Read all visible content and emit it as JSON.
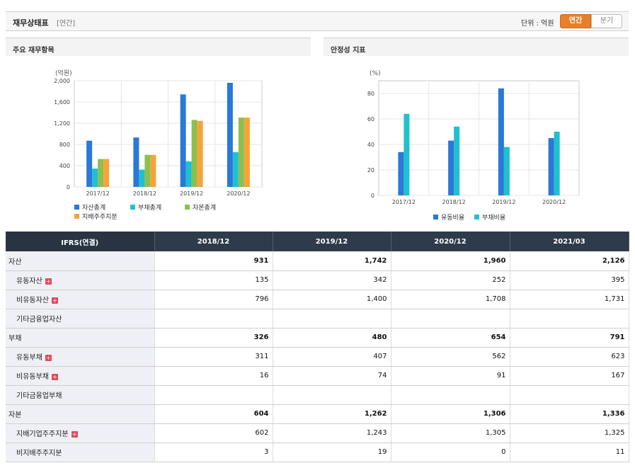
{
  "header": {
    "title": "재무상태표",
    "subtitle": "[연간]",
    "unit_label": "단위 : 억원",
    "annual_button": "연간",
    "quarter_button": "분기"
  },
  "panels": {
    "left_title": "주요 재무항목",
    "right_title": "안정성 지표"
  },
  "colors": {
    "blue": "#2a78d8",
    "cyan": "#1fc0cf",
    "green": "#8cbf4f",
    "orange": "#f6a43a"
  },
  "chart_data": [
    {
      "type": "bar",
      "ylabel": "(억원)",
      "ylim": [
        0,
        2000
      ],
      "y_ticks": [
        "0",
        "400",
        "800",
        "1,200",
        "1,600",
        "2,000"
      ],
      "y_tick_values": [
        0,
        400,
        800,
        1200,
        1600,
        2000
      ],
      "categories": [
        "2017/12",
        "2018/12",
        "2019/12",
        "2020/12"
      ],
      "series": [
        {
          "name": "자산총계",
          "color": "#2a78d8",
          "values": [
            870,
            931,
            1742,
            1960
          ]
        },
        {
          "name": "부채총계",
          "color": "#1fc0cf",
          "values": [
            345,
            326,
            480,
            654
          ]
        },
        {
          "name": "자본총계",
          "color": "#8cbf4f",
          "values": [
            525,
            604,
            1262,
            1306
          ]
        },
        {
          "name": "지배주주지분",
          "color": "#f6a43a",
          "values": [
            525,
            602,
            1243,
            1305
          ]
        }
      ],
      "grid": true,
      "legend": "bottom"
    },
    {
      "type": "bar",
      "ylabel": "(%)",
      "ylim": [
        0,
        90
      ],
      "y_ticks": [
        "0",
        "20",
        "40",
        "60",
        "80"
      ],
      "y_tick_values": [
        0,
        20,
        40,
        60,
        80
      ],
      "categories": [
        "2017/12",
        "2018/12",
        "2019/12",
        "2020/12"
      ],
      "series": [
        {
          "name": "유동비율",
          "color": "#2a78d8",
          "values": [
            34,
            43,
            84,
            45
          ]
        },
        {
          "name": "부채비율",
          "color": "#1fc0cf",
          "values": [
            64,
            54,
            38,
            50
          ]
        }
      ],
      "grid": true,
      "legend": "bottom"
    }
  ],
  "table": {
    "header": [
      "IFRS(연결)",
      "2018/12",
      "2019/12",
      "2020/12",
      "2021/03"
    ],
    "rows": [
      {
        "label": "자산",
        "level": "main",
        "expand": false,
        "values": [
          "931",
          "1,742",
          "1,960",
          "2,126"
        ]
      },
      {
        "label": "유동자산",
        "level": "sub",
        "expand": true,
        "values": [
          "135",
          "342",
          "252",
          "395"
        ]
      },
      {
        "label": "비유동자산",
        "level": "sub",
        "expand": true,
        "values": [
          "796",
          "1,400",
          "1,708",
          "1,731"
        ]
      },
      {
        "label": "기타금융업자산",
        "level": "sub",
        "expand": false,
        "values": [
          "",
          "",
          "",
          ""
        ]
      },
      {
        "label": "부채",
        "level": "main",
        "expand": false,
        "values": [
          "326",
          "480",
          "654",
          "791"
        ]
      },
      {
        "label": "유동부채",
        "level": "sub",
        "expand": true,
        "values": [
          "311",
          "407",
          "562",
          "623"
        ]
      },
      {
        "label": "비유동부채",
        "level": "sub",
        "expand": true,
        "values": [
          "16",
          "74",
          "91",
          "167"
        ]
      },
      {
        "label": "기타금융업부채",
        "level": "sub",
        "expand": false,
        "values": [
          "",
          "",
          "",
          ""
        ]
      },
      {
        "label": "자본",
        "level": "main",
        "expand": false,
        "values": [
          "604",
          "1,262",
          "1,306",
          "1,336"
        ]
      },
      {
        "label": "지배기업주주지분",
        "level": "sub",
        "expand": true,
        "values": [
          "602",
          "1,243",
          "1,305",
          "1,325"
        ]
      },
      {
        "label": "비지배주주지분",
        "level": "sub",
        "expand": false,
        "values": [
          "3",
          "19",
          "0",
          "11"
        ]
      }
    ]
  }
}
